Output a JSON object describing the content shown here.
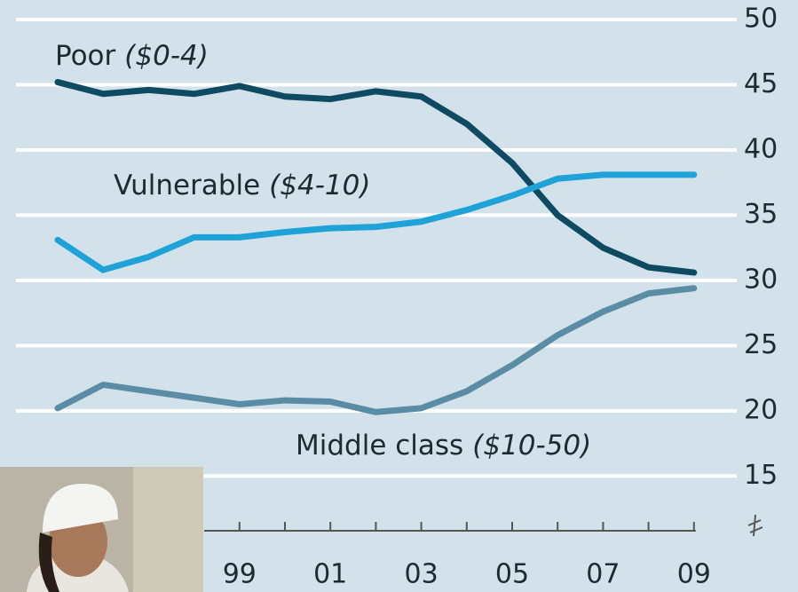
{
  "chart_data": {
    "type": "line",
    "categories": [
      null,
      null,
      null,
      null,
      "99",
      null,
      "01",
      null,
      "03",
      null,
      "05",
      null,
      "07",
      null,
      "09"
    ],
    "series": [
      {
        "name": "Poor",
        "range": "($0-4)",
        "color": "#0e4b62",
        "values": [
          45.2,
          44.3,
          44.6,
          44.3,
          44.9,
          44.1,
          43.9,
          44.5,
          44.1,
          42.0,
          39.0,
          35.0,
          32.5,
          31.0,
          30.6
        ]
      },
      {
        "name": "Vulnerable",
        "range": "($4-10)",
        "color": "#1ea2d8",
        "values": [
          33.1,
          30.8,
          31.8,
          33.3,
          33.3,
          33.7,
          34.0,
          34.1,
          34.5,
          35.4,
          36.5,
          37.8,
          38.1,
          38.1,
          38.1
        ]
      },
      {
        "name": "Middle class",
        "range": "($10-50)",
        "color": "#5a8da5",
        "values": [
          20.2,
          22.0,
          21.5,
          21.0,
          20.5,
          20.8,
          20.7,
          19.9,
          20.2,
          21.5,
          23.5,
          25.8,
          27.6,
          29.0,
          29.4
        ]
      }
    ],
    "ylim": [
      10.8,
      51.5
    ],
    "yticks": [
      15,
      20,
      25,
      30,
      35,
      40,
      45,
      50
    ],
    "grid": true
  }
}
